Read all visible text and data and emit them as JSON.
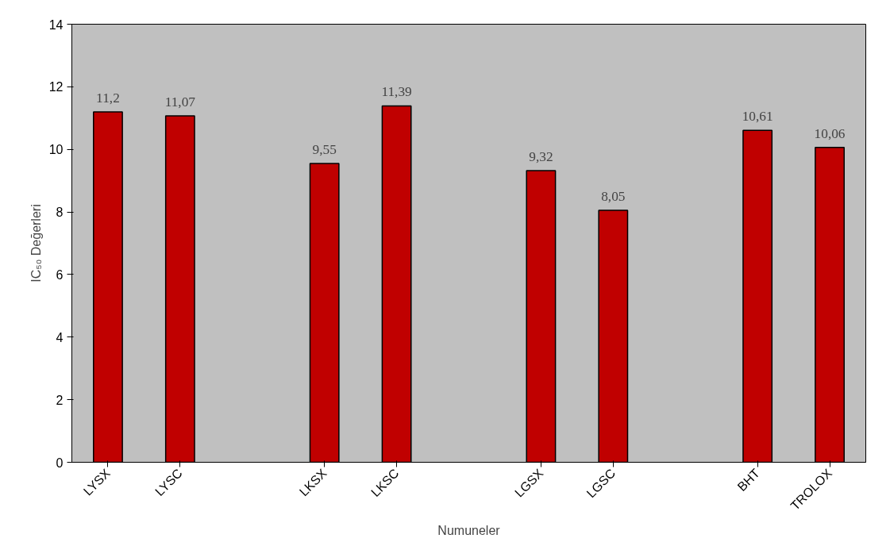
{
  "chart_data": {
    "type": "bar",
    "xlabel": "Numuneler",
    "ylabel": "IC₅₀ Değerleri",
    "categories": [
      "LYSX",
      "LYSC",
      null,
      "LKSX",
      "LKSC",
      null,
      "LGSX",
      "LGSC",
      null,
      "BHT",
      "TROLOX"
    ],
    "values": [
      11.2,
      11.07,
      null,
      9.55,
      11.39,
      null,
      9.32,
      8.05,
      null,
      10.61,
      10.06
    ],
    "value_labels": [
      "11,2",
      "11,07",
      null,
      "9,55",
      "11,39",
      null,
      "9,32",
      "8,05",
      null,
      "10,61",
      "10,06"
    ],
    "color": "#c00000",
    "ylim": [
      0,
      14
    ],
    "yticks": [
      0,
      2,
      4,
      6,
      8,
      10,
      12,
      14
    ]
  }
}
